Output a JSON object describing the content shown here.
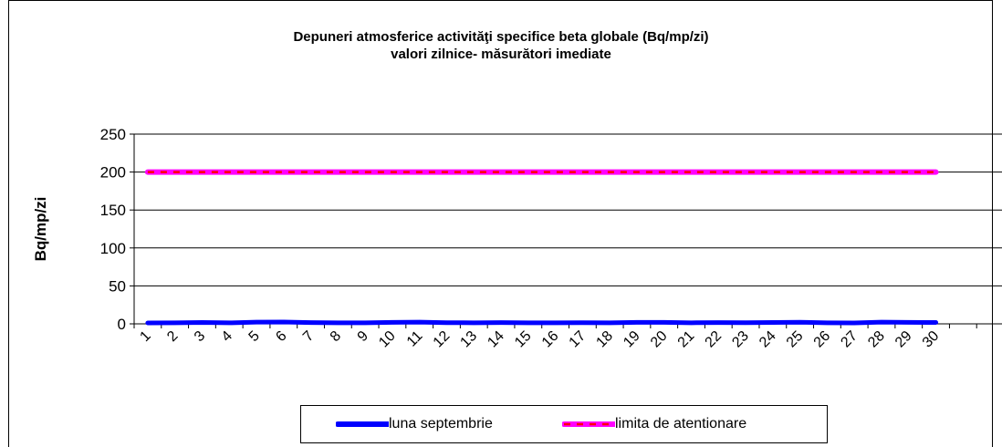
{
  "chart_data": {
    "type": "line",
    "title": "Depuneri atmosferice activităţi specifice beta globale (Bq/mp/zi)",
    "subtitle": "valori zilnice- măsurători imediate",
    "ylabel": "Bq/mp/zi",
    "xlabel": "",
    "ylim": [
      0,
      250
    ],
    "yticks": [
      0,
      50,
      100,
      150,
      200,
      250
    ],
    "grid": true,
    "legend_position": "bottom",
    "categories": [
      "1",
      "2",
      "3",
      "4",
      "5",
      "6",
      "7",
      "8",
      "9",
      "10",
      "11",
      "12",
      "13",
      "14",
      "15",
      "16",
      "17",
      "18",
      "19",
      "20",
      "21",
      "22",
      "23",
      "24",
      "25",
      "26",
      "27",
      "28",
      "29",
      "30"
    ],
    "series": [
      {
        "name": "luna septembrie",
        "color": "#0000ff",
        "style": "solid",
        "values": [
          1.2,
          1.4,
          1.8,
          1.3,
          2.2,
          2.4,
          1.6,
          1.4,
          1.3,
          2.0,
          2.2,
          1.5,
          1.4,
          1.6,
          1.3,
          1.4,
          1.5,
          1.4,
          1.9,
          2.0,
          1.4,
          1.7,
          1.5,
          1.8,
          2.1,
          1.4,
          1.2,
          2.3,
          1.9,
          1.8
        ]
      },
      {
        "name": "limita de atentionare",
        "color": "#ff00ff",
        "dash_color": "#ff0000",
        "style": "dashed-overlay",
        "values": [
          200,
          200,
          200,
          200,
          200,
          200,
          200,
          200,
          200,
          200,
          200,
          200,
          200,
          200,
          200,
          200,
          200,
          200,
          200,
          200,
          200,
          200,
          200,
          200,
          200,
          200,
          200,
          200,
          200,
          200
        ]
      }
    ]
  }
}
